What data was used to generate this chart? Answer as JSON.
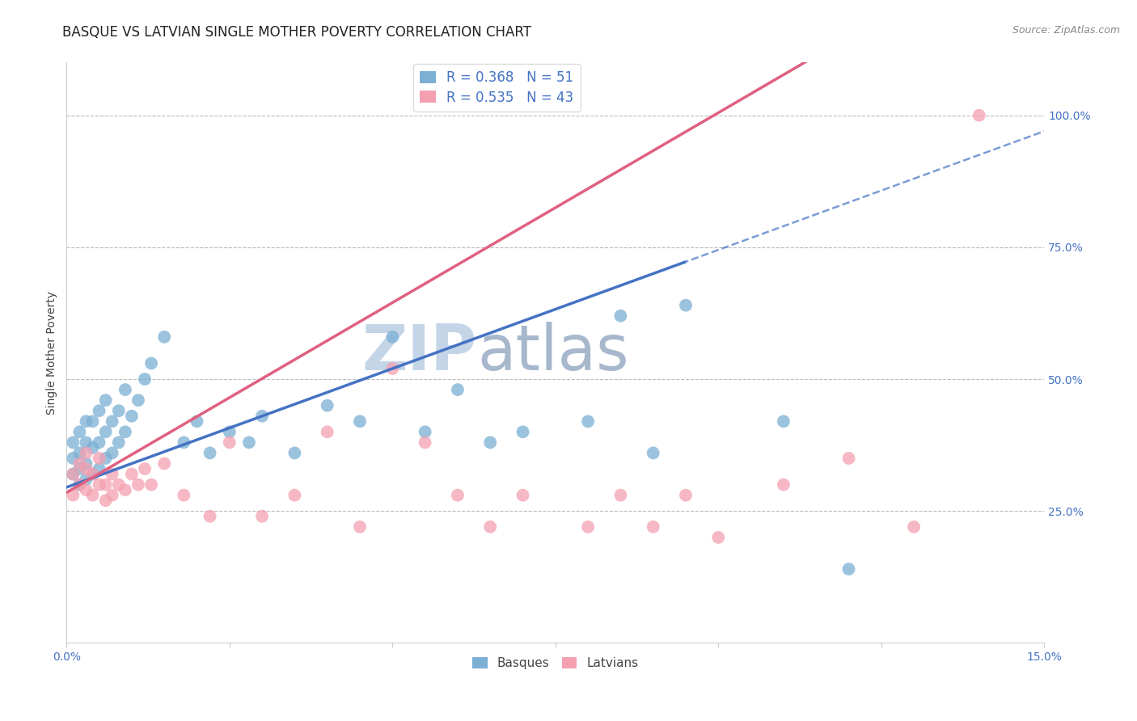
{
  "title": "BASQUE VS LATVIAN SINGLE MOTHER POVERTY CORRELATION CHART",
  "source_text": "Source: ZipAtlas.com",
  "ylabel": "Single Mother Poverty",
  "xlim": [
    0.0,
    0.15
  ],
  "ylim": [
    0.0,
    1.1
  ],
  "ytick_right_labels": [
    "25.0%",
    "50.0%",
    "75.0%",
    "100.0%"
  ],
  "ytick_right_vals": [
    0.25,
    0.5,
    0.75,
    1.0
  ],
  "legend_blue_r": "R = 0.368",
  "legend_blue_n": "N = 51",
  "legend_pink_r": "R = 0.535",
  "legend_pink_n": "N = 43",
  "blue_color": "#7BAFD4",
  "pink_color": "#F4A0B0",
  "blue_line_color": "#4472C4",
  "pink_line_color": "#E06080",
  "watermark_zip_color": "#C5D5E8",
  "watermark_atlas_color": "#A8B8CC",
  "background_color": "#FFFFFF",
  "title_fontsize": 12,
  "axis_label_fontsize": 10,
  "tick_fontsize": 10,
  "legend_fontsize": 12,
  "blue_reg_intercept": 0.295,
  "blue_reg_slope": 4.5,
  "pink_reg_intercept": 0.285,
  "pink_reg_slope": 7.2,
  "basque_x": [
    0.001,
    0.001,
    0.001,
    0.002,
    0.002,
    0.002,
    0.002,
    0.003,
    0.003,
    0.003,
    0.003,
    0.004,
    0.004,
    0.004,
    0.005,
    0.005,
    0.005,
    0.006,
    0.006,
    0.006,
    0.007,
    0.007,
    0.008,
    0.008,
    0.009,
    0.009,
    0.01,
    0.011,
    0.012,
    0.013,
    0.015,
    0.018,
    0.02,
    0.022,
    0.025,
    0.028,
    0.03,
    0.035,
    0.04,
    0.045,
    0.05,
    0.055,
    0.06,
    0.065,
    0.07,
    0.08,
    0.085,
    0.09,
    0.095,
    0.11,
    0.12
  ],
  "basque_y": [
    0.32,
    0.35,
    0.38,
    0.3,
    0.33,
    0.36,
    0.4,
    0.31,
    0.34,
    0.38,
    0.42,
    0.32,
    0.37,
    0.42,
    0.33,
    0.38,
    0.44,
    0.35,
    0.4,
    0.46,
    0.36,
    0.42,
    0.38,
    0.44,
    0.4,
    0.48,
    0.43,
    0.46,
    0.5,
    0.53,
    0.58,
    0.38,
    0.42,
    0.36,
    0.4,
    0.38,
    0.43,
    0.36,
    0.45,
    0.42,
    0.58,
    0.4,
    0.48,
    0.38,
    0.4,
    0.42,
    0.62,
    0.36,
    0.64,
    0.42,
    0.14
  ],
  "latvian_x": [
    0.001,
    0.001,
    0.002,
    0.002,
    0.003,
    0.003,
    0.003,
    0.004,
    0.004,
    0.005,
    0.005,
    0.006,
    0.006,
    0.007,
    0.007,
    0.008,
    0.009,
    0.01,
    0.011,
    0.012,
    0.013,
    0.015,
    0.018,
    0.022,
    0.025,
    0.03,
    0.035,
    0.04,
    0.045,
    0.05,
    0.055,
    0.06,
    0.065,
    0.07,
    0.08,
    0.085,
    0.09,
    0.095,
    0.1,
    0.11,
    0.12,
    0.13,
    0.14
  ],
  "latvian_y": [
    0.28,
    0.32,
    0.3,
    0.34,
    0.29,
    0.33,
    0.36,
    0.28,
    0.32,
    0.3,
    0.35,
    0.27,
    0.3,
    0.28,
    0.32,
    0.3,
    0.29,
    0.32,
    0.3,
    0.33,
    0.3,
    0.34,
    0.28,
    0.24,
    0.38,
    0.24,
    0.28,
    0.4,
    0.22,
    0.52,
    0.38,
    0.28,
    0.22,
    0.28,
    0.22,
    0.28,
    0.22,
    0.28,
    0.2,
    0.3,
    0.35,
    0.22,
    1.0
  ]
}
